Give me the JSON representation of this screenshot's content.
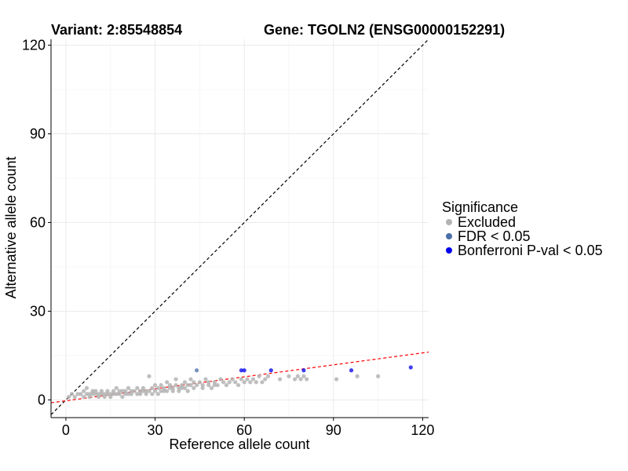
{
  "chart_data": {
    "type": "scatter",
    "title_left": "Variant: 2:85548854",
    "title_right": "Gene: TGOLN2 (ENSG00000152291)",
    "xlabel": "Reference allele count",
    "ylabel": "Alternative allele count",
    "xlim": [
      -5,
      122
    ],
    "ylim": [
      -6,
      122
    ],
    "xticks": [
      0,
      30,
      60,
      90,
      120
    ],
    "yticks": [
      0,
      30,
      60,
      90,
      120
    ],
    "grid": true,
    "legend": {
      "title": "Significance",
      "placement": "right",
      "entries": [
        {
          "label": "Excluded",
          "color": "#b3b3b3"
        },
        {
          "label": "FDR < 0.05",
          "color": "#4a6fa8"
        },
        {
          "label": "Bonferroni P-val < 0.05",
          "color": "#0000ee"
        }
      ]
    },
    "reference_lines": [
      {
        "name": "identity",
        "slope": 1,
        "intercept": 0,
        "color": "#000000",
        "dash": "dashed"
      },
      {
        "name": "fit",
        "slope": 0.135,
        "intercept": -0.3,
        "color": "#ff0000",
        "dash": "dashed"
      }
    ],
    "series": [
      {
        "name": "Excluded",
        "color": "#b3b3b3",
        "points": [
          [
            1,
            1
          ],
          [
            2,
            2
          ],
          [
            3,
            1
          ],
          [
            4,
            2
          ],
          [
            5,
            2
          ],
          [
            6,
            1
          ],
          [
            6,
            3
          ],
          [
            7,
            2
          ],
          [
            7,
            4
          ],
          [
            8,
            1
          ],
          [
            8,
            2
          ],
          [
            9,
            2
          ],
          [
            9,
            3
          ],
          [
            10,
            2
          ],
          [
            10,
            3
          ],
          [
            11,
            1
          ],
          [
            11,
            2
          ],
          [
            12,
            2
          ],
          [
            12,
            3
          ],
          [
            13,
            2
          ],
          [
            13,
            1
          ],
          [
            14,
            2
          ],
          [
            14,
            3
          ],
          [
            15,
            1
          ],
          [
            15,
            2
          ],
          [
            16,
            2
          ],
          [
            16,
            3
          ],
          [
            17,
            2
          ],
          [
            17,
            4
          ],
          [
            18,
            2
          ],
          [
            18,
            3
          ],
          [
            19,
            1
          ],
          [
            19,
            3
          ],
          [
            20,
            2
          ],
          [
            20,
            3
          ],
          [
            21,
            2
          ],
          [
            21,
            4
          ],
          [
            22,
            2
          ],
          [
            22,
            3
          ],
          [
            23,
            3
          ],
          [
            24,
            2
          ],
          [
            24,
            4
          ],
          [
            25,
            3
          ],
          [
            25,
            2
          ],
          [
            26,
            3
          ],
          [
            26,
            4
          ],
          [
            27,
            2
          ],
          [
            27,
            3
          ],
          [
            28,
            3
          ],
          [
            28,
            8
          ],
          [
            29,
            2
          ],
          [
            29,
            4
          ],
          [
            30,
            3
          ],
          [
            30,
            5
          ],
          [
            31,
            2
          ],
          [
            31,
            4
          ],
          [
            32,
            3
          ],
          [
            32,
            5
          ],
          [
            33,
            3
          ],
          [
            33,
            4
          ],
          [
            34,
            6
          ],
          [
            34,
            3
          ],
          [
            35,
            4
          ],
          [
            35,
            5
          ],
          [
            36,
            3
          ],
          [
            36,
            4
          ],
          [
            37,
            7
          ],
          [
            37,
            5
          ],
          [
            38,
            4
          ],
          [
            38,
            3
          ],
          [
            39,
            5
          ],
          [
            39,
            4
          ],
          [
            40,
            6
          ],
          [
            40,
            4
          ],
          [
            41,
            5
          ],
          [
            41,
            3
          ],
          [
            42,
            7
          ],
          [
            42,
            5
          ],
          [
            43,
            4
          ],
          [
            43,
            6
          ],
          [
            44,
            5
          ],
          [
            45,
            6
          ],
          [
            46,
            5
          ],
          [
            46,
            4
          ],
          [
            47,
            7
          ],
          [
            48,
            5
          ],
          [
            48,
            6
          ],
          [
            49,
            4
          ],
          [
            50,
            6
          ],
          [
            50,
            5
          ],
          [
            51,
            5
          ],
          [
            52,
            7
          ],
          [
            53,
            6
          ],
          [
            54,
            5
          ],
          [
            55,
            6
          ],
          [
            56,
            7
          ],
          [
            57,
            6
          ],
          [
            58,
            5
          ],
          [
            59,
            7
          ],
          [
            60,
            6
          ],
          [
            61,
            7
          ],
          [
            62,
            6
          ],
          [
            63,
            7
          ],
          [
            64,
            6
          ],
          [
            65,
            8
          ],
          [
            66,
            6
          ],
          [
            67,
            7
          ],
          [
            68,
            8
          ],
          [
            72,
            7
          ],
          [
            75,
            8
          ],
          [
            77,
            7
          ],
          [
            78,
            8
          ],
          [
            79,
            7
          ],
          [
            80,
            8
          ],
          [
            81,
            7
          ],
          [
            91,
            7
          ],
          [
            98,
            8
          ],
          [
            105,
            8
          ]
        ]
      },
      {
        "name": "FDR < 0.05",
        "color": "#4a6fa8",
        "points": [
          [
            44,
            10
          ]
        ]
      },
      {
        "name": "Bonferroni P-val < 0.05",
        "color": "#0000ee",
        "points": [
          [
            59,
            10
          ],
          [
            60,
            10
          ],
          [
            69,
            10
          ],
          [
            80,
            10
          ],
          [
            96,
            10
          ],
          [
            116,
            11
          ]
        ]
      }
    ]
  }
}
